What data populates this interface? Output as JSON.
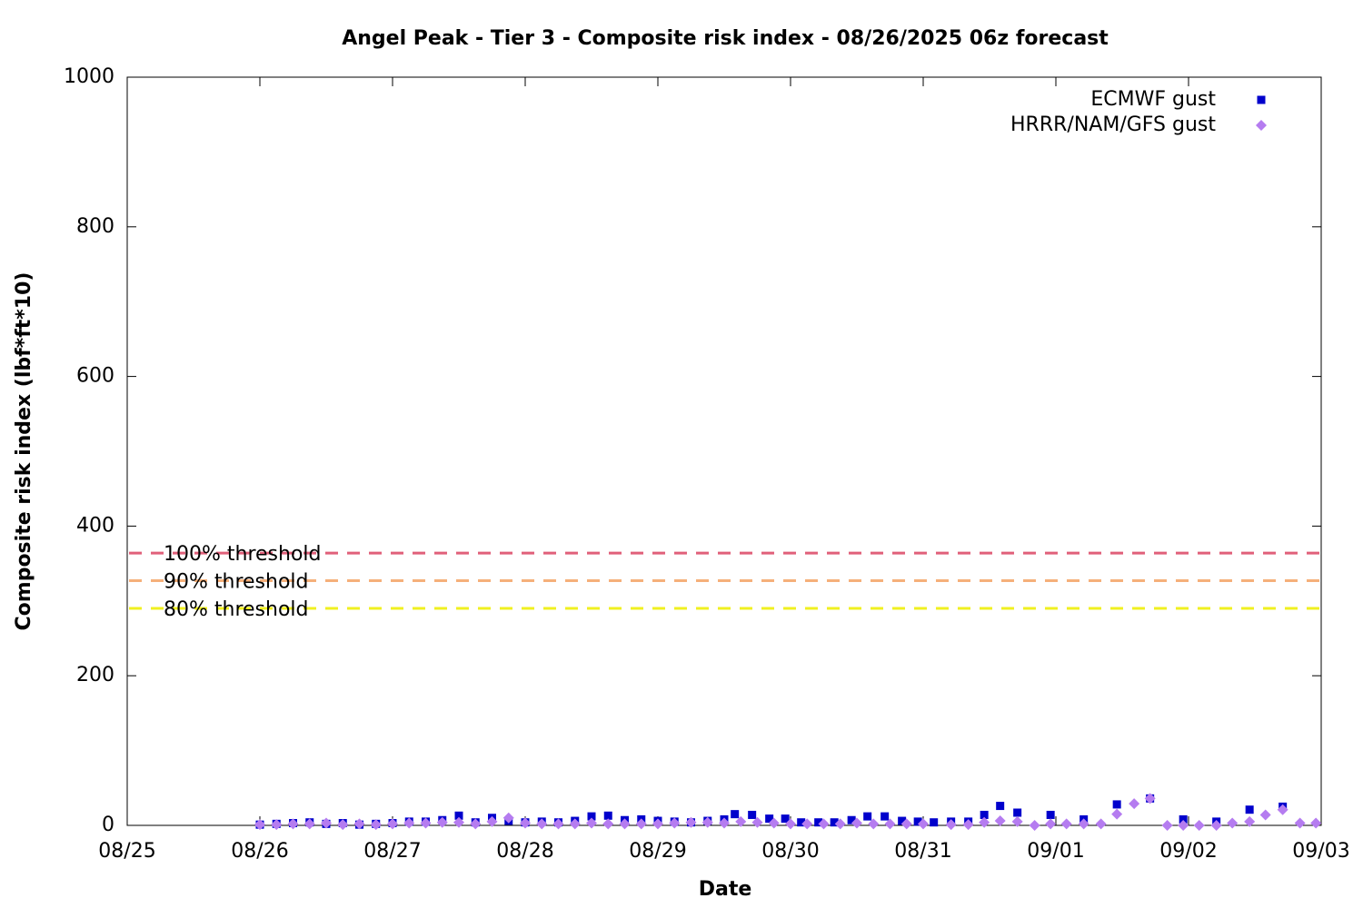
{
  "chart_data": {
    "type": "scatter",
    "title": "Angel Peak - Tier 3 - Composite risk index - 08/26/2025 06z forecast",
    "x_label": "Date",
    "y_label": "Composite risk index (lbf*ft*10)",
    "xlim": [
      0,
      9
    ],
    "xticks": [
      {
        "value": 0,
        "label": "08/25"
      },
      {
        "value": 1,
        "label": "08/26"
      },
      {
        "value": 2,
        "label": "08/27"
      },
      {
        "value": 3,
        "label": "08/28"
      },
      {
        "value": 4,
        "label": "08/29"
      },
      {
        "value": 5,
        "label": "08/30"
      },
      {
        "value": 6,
        "label": "08/31"
      },
      {
        "value": 7,
        "label": "09/01"
      },
      {
        "value": 8,
        "label": "09/02"
      },
      {
        "value": 9,
        "label": "09/03"
      }
    ],
    "ylim": [
      0,
      1000
    ],
    "yticks": [
      0,
      200,
      400,
      600,
      800,
      1000
    ],
    "legend": "top-right",
    "thresholds": [
      {
        "label": "100% threshold",
        "value": 364,
        "color": "#e0607a"
      },
      {
        "label": "90% threshold",
        "value": 327,
        "color": "#f5b07a"
      },
      {
        "label": "80% threshold",
        "value": 290,
        "color": "#f0f020"
      }
    ],
    "series": [
      {
        "name": "ECMWF gust",
        "color": "#0000cc",
        "marker": "square",
        "x": [
          1,
          1.125,
          1.25,
          1.375,
          1.5,
          1.625,
          1.75,
          1.875,
          2,
          2.125,
          2.25,
          2.375,
          2.5,
          2.625,
          2.75,
          2.875,
          3,
          3.125,
          3.25,
          3.375,
          3.5,
          3.625,
          3.75,
          3.875,
          4,
          4.125,
          4.25,
          4.375,
          4.5,
          4.58,
          4.71,
          4.84,
          4.96,
          5.08,
          5.21,
          5.33,
          5.46,
          5.58,
          5.71,
          5.84,
          5.96,
          6.08,
          6.21,
          6.34,
          6.46,
          6.58,
          6.71,
          6.96,
          7.21,
          7.46,
          7.71,
          7.96,
          8.21,
          8.46,
          8.71
        ],
        "values": [
          1,
          2,
          3,
          4,
          2,
          3,
          1,
          2,
          3,
          5,
          5,
          7,
          13,
          4,
          10,
          6,
          4,
          5,
          4,
          6,
          12,
          13,
          7,
          8,
          6,
          5,
          4,
          6,
          8,
          15,
          14,
          9,
          9,
          4,
          4,
          4,
          7,
          12,
          12,
          6,
          5,
          4,
          5,
          5,
          14,
          26,
          17,
          14,
          8,
          28,
          36,
          8,
          5,
          21,
          25
        ]
      },
      {
        "name": "HRRR/NAM/GFS gust",
        "color": "#b57cf0",
        "marker": "diamond",
        "x": [
          1,
          1.125,
          1.25,
          1.375,
          1.5,
          1.625,
          1.75,
          1.875,
          2,
          2.125,
          2.25,
          2.375,
          2.5,
          2.625,
          2.75,
          2.875,
          3,
          3.125,
          3.25,
          3.375,
          3.5,
          3.625,
          3.75,
          3.875,
          4,
          4.125,
          4.25,
          4.375,
          4.5,
          4.625,
          4.75,
          4.875,
          5,
          5.125,
          5.25,
          5.375,
          5.5,
          5.625,
          5.75,
          5.875,
          6,
          6.21,
          6.34,
          6.46,
          6.58,
          6.71,
          6.84,
          6.96,
          7.08,
          7.21,
          7.34,
          7.46,
          7.59,
          7.71,
          7.84,
          7.96,
          8.08,
          8.21,
          8.33,
          8.46,
          8.58,
          8.71,
          8.84,
          8.96
        ],
        "values": [
          1,
          1,
          2,
          2,
          3,
          1,
          2,
          1,
          2,
          3,
          3,
          4,
          4,
          2,
          5,
          10,
          3,
          2,
          2,
          2,
          3,
          2,
          2,
          2,
          2,
          3,
          4,
          4,
          3,
          5,
          4,
          3,
          2,
          2,
          2,
          2,
          3,
          2,
          2,
          2,
          2,
          1,
          1,
          4,
          6,
          5,
          0,
          2,
          2,
          2,
          2,
          15,
          29,
          36,
          0,
          0,
          0,
          0,
          3,
          5,
          14,
          21,
          3,
          3
        ]
      }
    ]
  }
}
